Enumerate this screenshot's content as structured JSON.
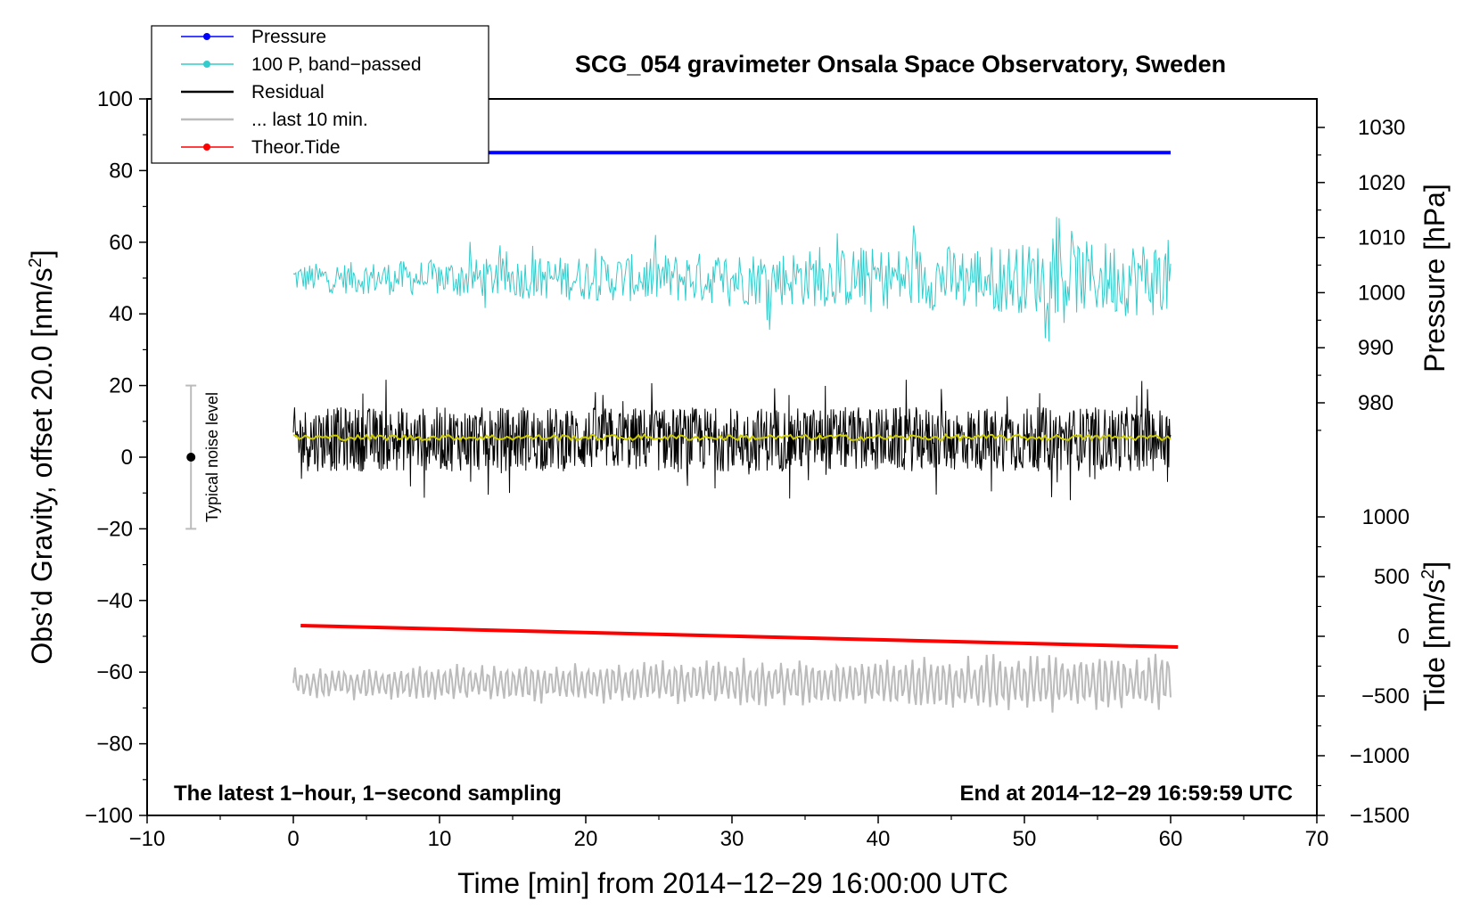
{
  "chart_data": {
    "type": "line",
    "title": "SCG_054 gravimeter Onsala Space Observatory, Sweden",
    "xlabel": "Time [min] from 2014−12−29 16:00:00 UTC",
    "ylabel_left": "Obs’d Gravity, offset 20.0 [nm/s",
    "ylabel_left_sup": "2",
    "ylabel_left_end": "]",
    "ylabel_right_pressure": "Pressure [hPa]",
    "ylabel_right_tide": "Tide [nm/s",
    "ylabel_right_tide_sup": "2",
    "ylabel_right_tide_end": "]",
    "xlim": [
      -10,
      70
    ],
    "ylim_left": [
      -100,
      100
    ],
    "xticks": [
      "−10",
      "0",
      "10",
      "20",
      "30",
      "40",
      "50",
      "60",
      "70"
    ],
    "yticks_left": [
      "−100",
      "−80",
      "−60",
      "−40",
      "−20",
      "0",
      "20",
      "40",
      "60",
      "80",
      "100"
    ],
    "pressure_axis": {
      "ticks": [
        "980",
        "990",
        "1000",
        "1010",
        "1020",
        "1030"
      ]
    },
    "tide_axis": {
      "ticks": [
        "−1500",
        "−1000",
        "−500",
        "0",
        "500",
        "1000"
      ]
    },
    "annotation_left": "The latest 1−hour, 1−second sampling",
    "annotation_right": "End at 2014−12−29 16:59:59 UTC",
    "noise_bar": {
      "label": "Typical noise level",
      "x": -7,
      "center": 0,
      "half_range": 20
    },
    "legend": [
      {
        "label": "Pressure",
        "color": "#0000ff",
        "marker": true
      },
      {
        "label": "100 P, band−passed",
        "color": "#33cccc",
        "marker": true
      },
      {
        "label": "Residual",
        "color": "#000000",
        "marker": false
      },
      {
        "label": "... last 10 min.",
        "color": "#bbbbbb",
        "marker": false
      },
      {
        "label": "Theor.Tide",
        "color": "#ff0000",
        "marker": true
      }
    ],
    "series": [
      {
        "name": "Pressure",
        "color": "#0000ff",
        "x": [
          0,
          60
        ],
        "y": [
          85,
          85
        ]
      },
      {
        "name": "100 P, band−passed",
        "color": "#33cccc",
        "x_range": [
          0,
          60
        ],
        "center": 50,
        "amplitude_start": 4,
        "amplitude_end": 11
      },
      {
        "name": "Residual",
        "color": "#000000",
        "x_range": [
          0,
          60
        ],
        "center": 5,
        "amplitude": 9,
        "max": 22,
        "min": -12
      },
      {
        "name": "Residual mean",
        "color": "#cccc00",
        "x_range": [
          0,
          60
        ],
        "center": 5.5
      },
      {
        "name": "Theor.Tide",
        "color": "#ff0000",
        "x": [
          0.5,
          60.5
        ],
        "y": [
          -47,
          -53
        ]
      },
      {
        "name": "... last 10 min.",
        "color": "#bbbbbb",
        "x_range": [
          0,
          60
        ],
        "center": -63,
        "amplitude": 7,
        "min": -79
      }
    ]
  }
}
